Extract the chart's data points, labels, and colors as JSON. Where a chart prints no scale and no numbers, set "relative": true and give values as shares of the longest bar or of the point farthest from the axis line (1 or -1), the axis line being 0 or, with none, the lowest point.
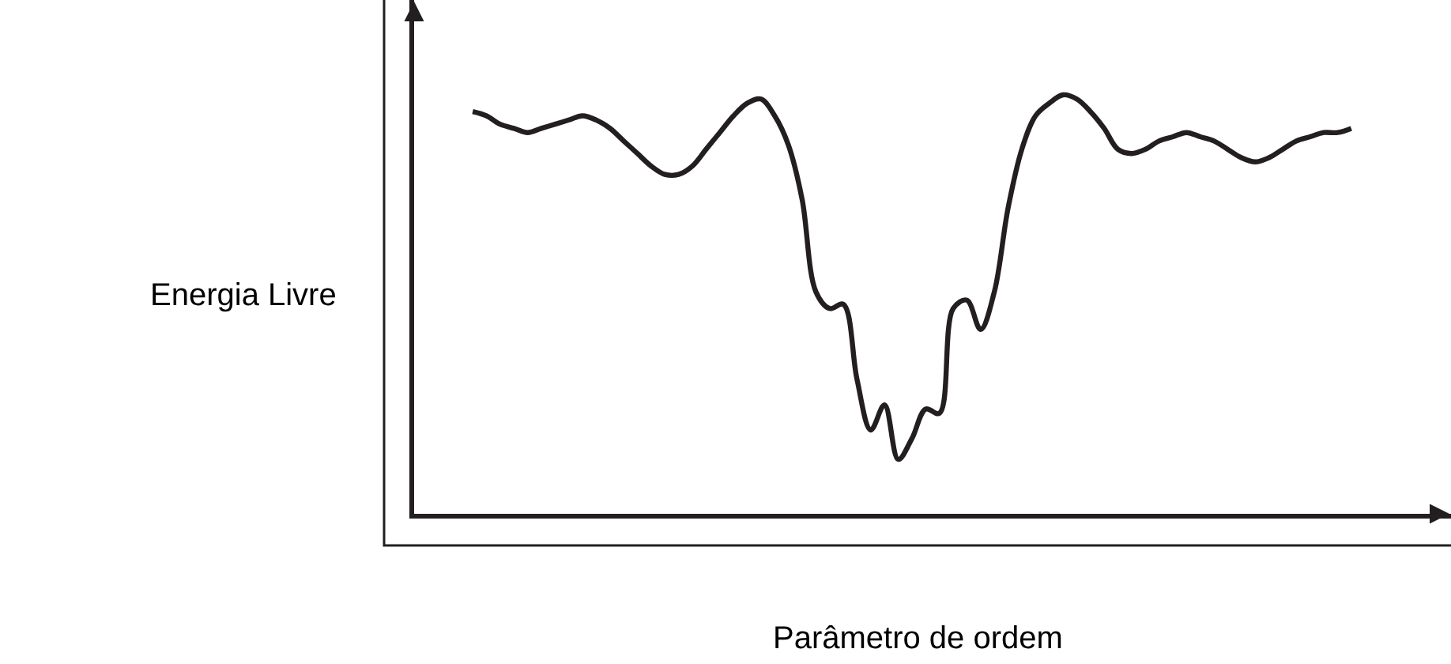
{
  "chart_data": {
    "type": "line",
    "relative": true,
    "xlabel": "Parâmetro de ordem",
    "ylabel": "Energia Livre",
    "marker": "none",
    "line_style": "solid",
    "categories": [
      null,
      null,
      null,
      null,
      null,
      null,
      null,
      null,
      null,
      null,
      null,
      null,
      null,
      null,
      null,
      null,
      null,
      null,
      null,
      null,
      null,
      null,
      null,
      null,
      null,
      null,
      null,
      null,
      null,
      null,
      null,
      null,
      null,
      null,
      null,
      null,
      null,
      null,
      null,
      null,
      null,
      null,
      null,
      null,
      null,
      null,
      null,
      null,
      null,
      null,
      null,
      null,
      null,
      null,
      null,
      null,
      null,
      null,
      null,
      null,
      null,
      null,
      null,
      null,
      null
    ],
    "series": [
      {
        "color": "#231f20",
        "values": [
          0.96,
          0.95,
          0.93,
          0.92,
          0.91,
          0.92,
          0.93,
          0.94,
          0.95,
          0.94,
          0.92,
          0.89,
          0.86,
          0.83,
          0.81,
          0.81,
          0.83,
          0.87,
          0.91,
          0.95,
          0.98,
          0.99,
          0.95,
          0.88,
          0.75,
          0.53,
          0.49,
          0.5,
          0.32,
          0.2,
          0.26,
          0.13,
          0.18,
          0.25,
          0.24,
          0.49,
          0.51,
          0.44,
          0.53,
          0.73,
          0.87,
          0.95,
          0.98,
          1.0,
          0.99,
          0.96,
          0.92,
          0.87,
          0.86,
          0.87,
          0.89,
          0.9,
          0.91,
          0.9,
          0.89,
          0.87,
          0.85,
          0.84,
          0.85,
          0.87,
          0.89,
          0.9,
          0.91,
          0.91,
          0.92
        ]
      }
    ]
  }
}
